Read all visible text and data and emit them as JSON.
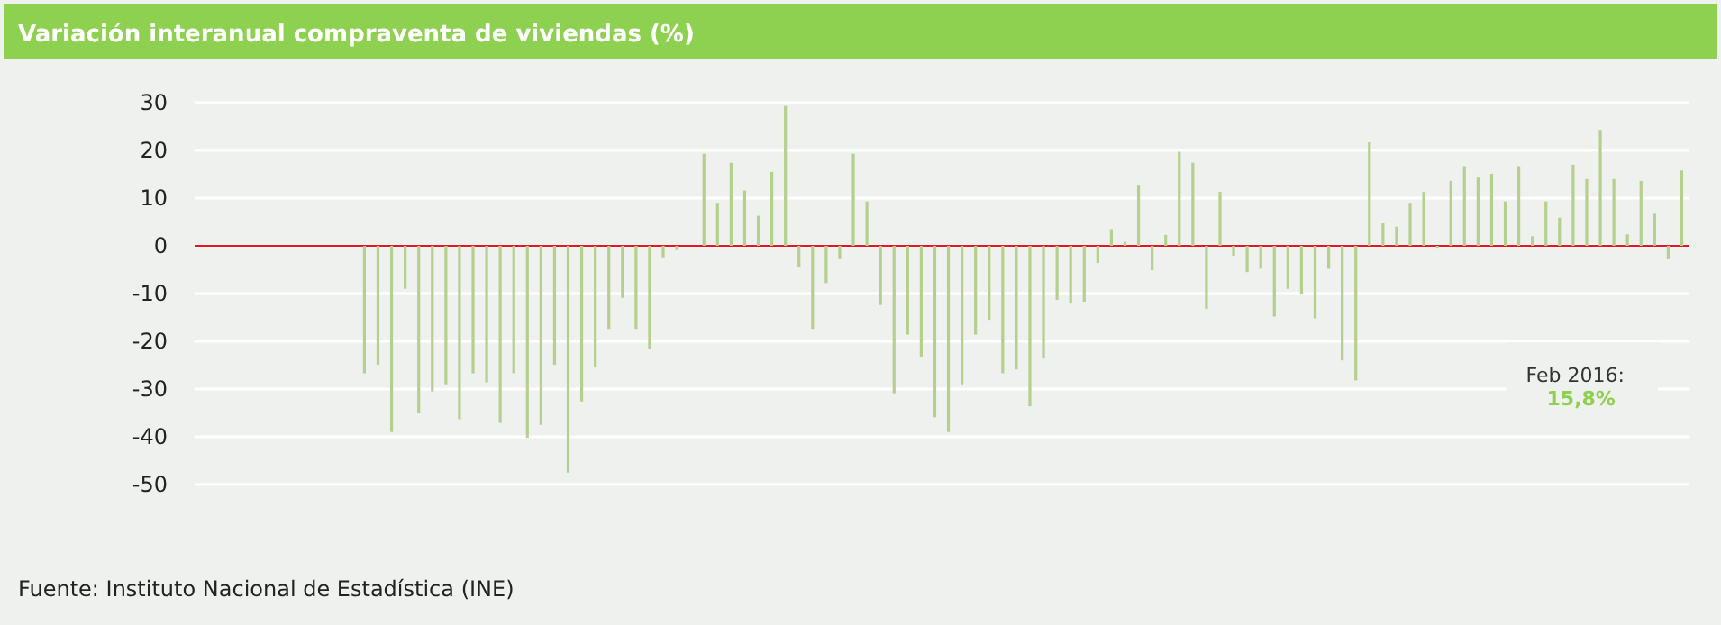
{
  "chart_data": {
    "type": "bar",
    "title": "Variación interanual compraventa de viviendas (%)",
    "categories": [
      null,
      null,
      null,
      null,
      null,
      null,
      null,
      null,
      null,
      null,
      null,
      null,
      null,
      null,
      null,
      null,
      null,
      null,
      null,
      null,
      null,
      null,
      null,
      null,
      null,
      null,
      null,
      null,
      null,
      null,
      null,
      null,
      null,
      null,
      null,
      null,
      null,
      null,
      null,
      null,
      null,
      null,
      null,
      null,
      null,
      null,
      null,
      null,
      null,
      null,
      null,
      null,
      null,
      null,
      null,
      null,
      null,
      null,
      null,
      null,
      null,
      null,
      null,
      null,
      null,
      null,
      null,
      null,
      null,
      null,
      null,
      null,
      null,
      null,
      null,
      null,
      null,
      null,
      null,
      null,
      null,
      null,
      null,
      null,
      null,
      null,
      null,
      null,
      null,
      null,
      null,
      null,
      null,
      null,
      null,
      null,
      null,
      null,
      null,
      null,
      null,
      null,
      null,
      null,
      null,
      null,
      null,
      null,
      null,
      null
    ],
    "values": [
      null,
      null,
      null,
      null,
      null,
      null,
      null,
      null,
      null,
      null,
      null,
      null,
      -26.7,
      -24.9,
      -39,
      -9,
      -35.1,
      -30.5,
      -29,
      -36.3,
      -26.7,
      -28.6,
      -37.1,
      -26.7,
      -40.2,
      -37.5,
      -24.9,
      -47.5,
      -32.6,
      -25.5,
      -17.4,
      -10.9,
      -17.4,
      -21.7,
      -2.4,
      -0.9,
      0,
      19.3,
      9,
      17.4,
      11.6,
      6.3,
      15.5,
      29.3,
      -4.4,
      -17.4,
      -7.8,
      -2.8,
      19.3,
      9.3,
      -12.4,
      -30.9,
      -18.6,
      -23.2,
      -35.9,
      -39,
      -29,
      -18.6,
      -15.5,
      -26.7,
      -25.9,
      -33.6,
      -23.6,
      -11.3,
      -12.1,
      -11.7,
      -3.6,
      3.5,
      0.8,
      12.8,
      -5.1,
      2.3,
      19.7,
      17.4,
      -13.2,
      11.3,
      -2.1,
      -5.5,
      -4.8,
      -14.8,
      -9,
      -10.2,
      -15.2,
      -4.8,
      -24,
      -28.2,
      21.7,
      4.7,
      4,
      9,
      11.3,
      -0.4,
      13.6,
      16.7,
      14.3,
      15.1,
      9.3,
      16.7,
      2,
      9.3,
      5.9,
      17,
      14,
      24.3,
      14,
      2.4,
      13.6,
      6.7,
      -2.8,
      15.8
    ],
    "color": "#b5cf8f",
    "ylim": [
      -50,
      30
    ],
    "yticks": [
      -50,
      -40,
      -30,
      -20,
      -10,
      0,
      10,
      20,
      30
    ],
    "grid": "y",
    "ref_lines": [
      {
        "axis": "y",
        "value": 0,
        "color": "#e8141e"
      }
    ],
    "annotations": [
      "Feb 2016:",
      "15,8%",
      "Fuente: Instituto Nacional de Estadística (INE)"
    ]
  }
}
